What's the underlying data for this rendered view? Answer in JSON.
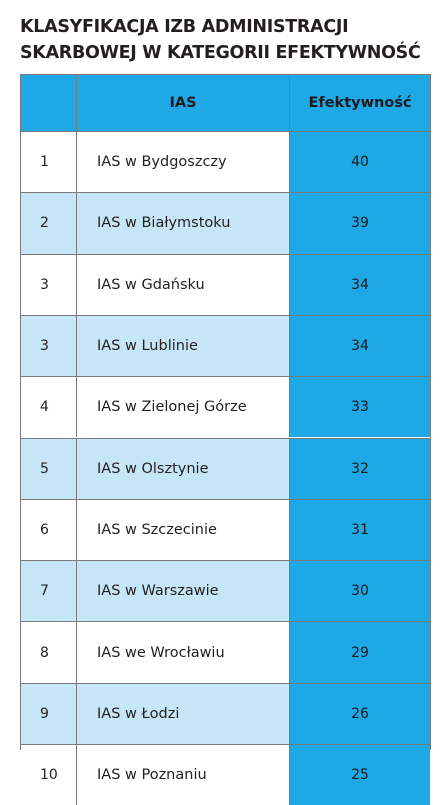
{
  "title_line1": "KLASYFIKACJA IZB ADMINISTRACJI",
  "title_line2": "SKARBOWEJ W KATEGORII EFEKTYWNOŚĆ",
  "chart_data": {
    "type": "table",
    "title": "KLASYFIKACJA IZB ADMINISTRACJI SKARBOWEJ W KATEGORII EFEKTYWNOŚĆ",
    "columns": [
      "",
      "IAS",
      "Efektywność"
    ],
    "rows": [
      {
        "rank": "1",
        "name": "IAS w Bydgoszczy",
        "value": 40
      },
      {
        "rank": "2",
        "name": "IAS w Białymstoku",
        "value": 39
      },
      {
        "rank": "3",
        "name": "IAS w Gdańsku",
        "value": 34
      },
      {
        "rank": "3",
        "name": "IAS w Lublinie",
        "value": 34
      },
      {
        "rank": "4",
        "name": "IAS w Zielonej Górze",
        "value": 33
      },
      {
        "rank": "5",
        "name": "IAS w Olsztynie",
        "value": 32
      },
      {
        "rank": "6",
        "name": "IAS w Szczecinie",
        "value": 31
      },
      {
        "rank": "7",
        "name": "IAS w Warszawie",
        "value": 30
      },
      {
        "rank": "8",
        "name": "IAS we Wrocławiu",
        "value": 29
      },
      {
        "rank": "9",
        "name": "IAS w Łodzi",
        "value": 26
      },
      {
        "rank": "10",
        "name": "IAS w Poznaniu",
        "value": 25
      }
    ]
  },
  "colors": {
    "header_bg": "#1fa8e6",
    "value_column_bg": "#1fa8e6",
    "alt_row_bg": "#c6e6f7",
    "row_bg": "#ffffff"
  }
}
